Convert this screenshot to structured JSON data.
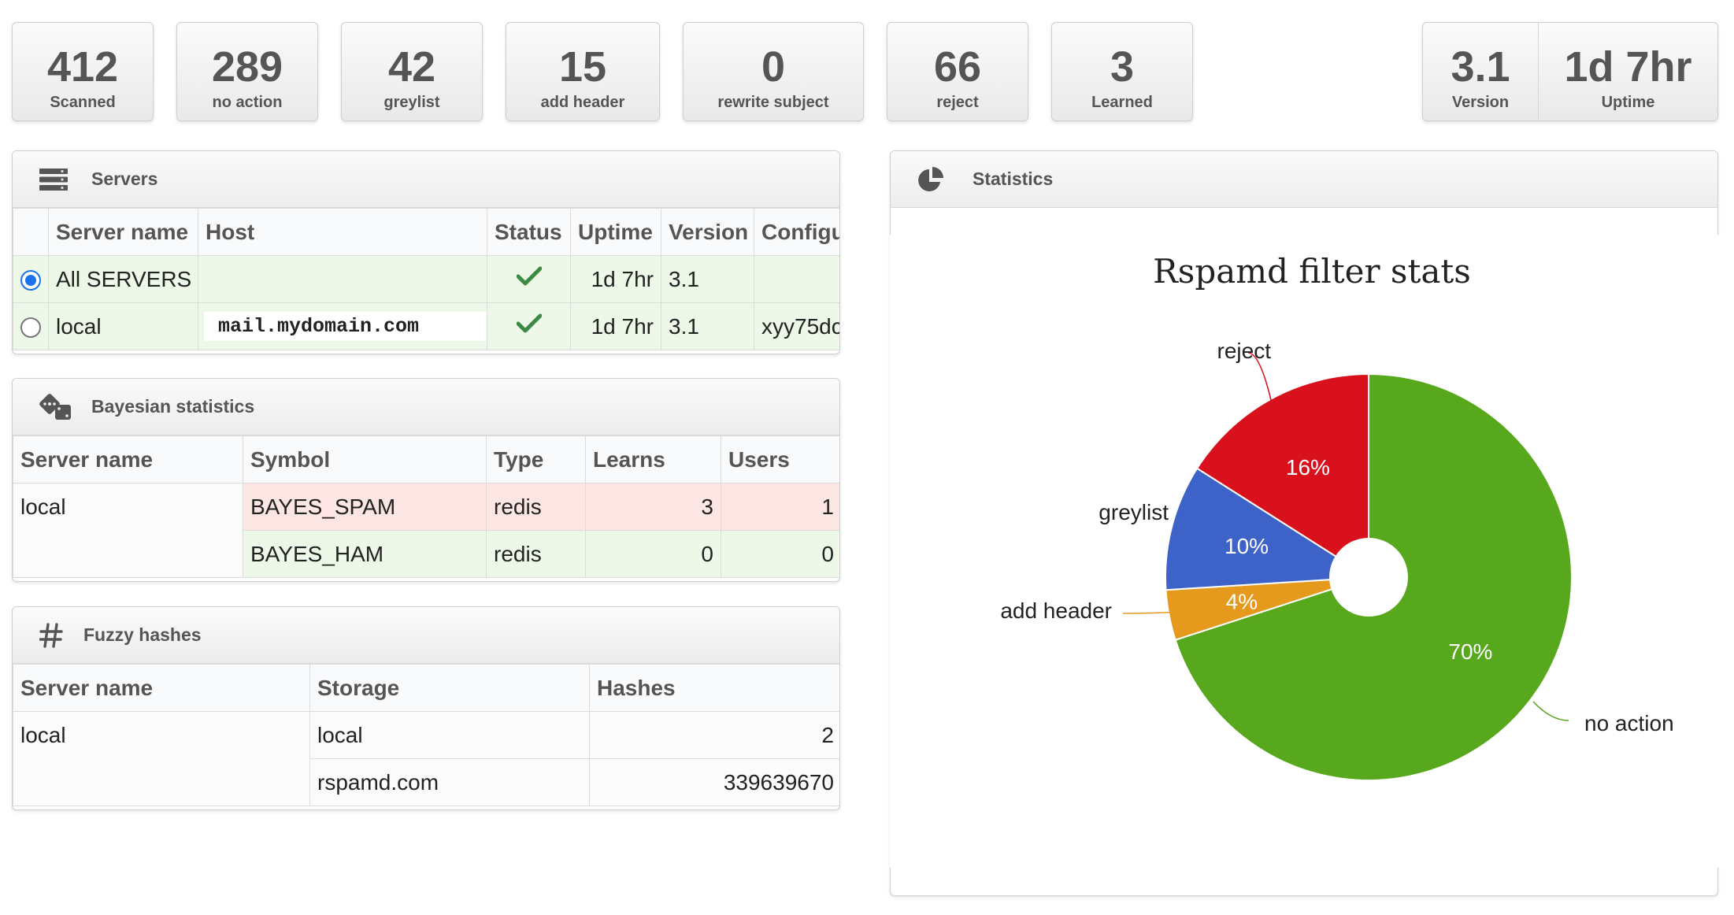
{
  "stats": [
    {
      "value": "412",
      "label": "Scanned"
    },
    {
      "value": "289",
      "label": "no action"
    },
    {
      "value": "42",
      "label": "greylist"
    },
    {
      "value": "15",
      "label": "add header"
    },
    {
      "value": "0",
      "label": "rewrite subject"
    },
    {
      "value": "66",
      "label": "reject"
    },
    {
      "value": "3",
      "label": "Learned"
    }
  ],
  "version_box": {
    "version_value": "3.1",
    "version_label": "Version",
    "uptime_value": "1d 7hr",
    "uptime_label": "Uptime"
  },
  "servers": {
    "title": "Servers",
    "icon": "server-icon",
    "columns": [
      "",
      "Server name",
      "Host",
      "Status",
      "Uptime",
      "Version",
      "Configu"
    ],
    "rows": [
      {
        "selected": true,
        "name": "All SERVERS",
        "host": "",
        "status": "ok",
        "uptime": "1d 7hr",
        "version": "3.1",
        "config": ""
      },
      {
        "selected": false,
        "name": "local",
        "host": "mail.mydomain.com",
        "status": "ok",
        "uptime": "1d 7hr",
        "version": "3.1",
        "config": "xyy75dc"
      }
    ]
  },
  "bayes": {
    "title": "Bayesian statistics",
    "icon": "dice-icon",
    "columns": [
      "Server name",
      "Symbol",
      "Type",
      "Learns",
      "Users"
    ],
    "server": "local",
    "rows": [
      {
        "symbol": "BAYES_SPAM",
        "type": "redis",
        "learns": "3",
        "users": "1"
      },
      {
        "symbol": "BAYES_HAM",
        "type": "redis",
        "learns": "0",
        "users": "0"
      }
    ]
  },
  "fuzzy": {
    "title": "Fuzzy hashes",
    "icon": "hash-icon",
    "columns": [
      "Server name",
      "Storage",
      "Hashes"
    ],
    "server": "local",
    "rows": [
      {
        "storage": "local",
        "hashes": "2"
      },
      {
        "storage": "rspamd.com",
        "hashes": "339639670"
      }
    ]
  },
  "statistics_panel": {
    "title": "Statistics",
    "icon": "pie-chart-icon"
  },
  "chart_data": {
    "type": "pie",
    "title": "Rspamd filter stats",
    "donut": true,
    "slices": [
      {
        "label": "no action",
        "value": 70,
        "display": "70%",
        "color": "#57a81c"
      },
      {
        "label": "add header",
        "value": 4,
        "display": "4%",
        "color": "#e59a1e"
      },
      {
        "label": "greylist",
        "value": 10,
        "display": "10%",
        "color": "#3d63c9"
      },
      {
        "label": "reject",
        "value": 16,
        "display": "16%",
        "color": "#d9111d"
      }
    ]
  }
}
